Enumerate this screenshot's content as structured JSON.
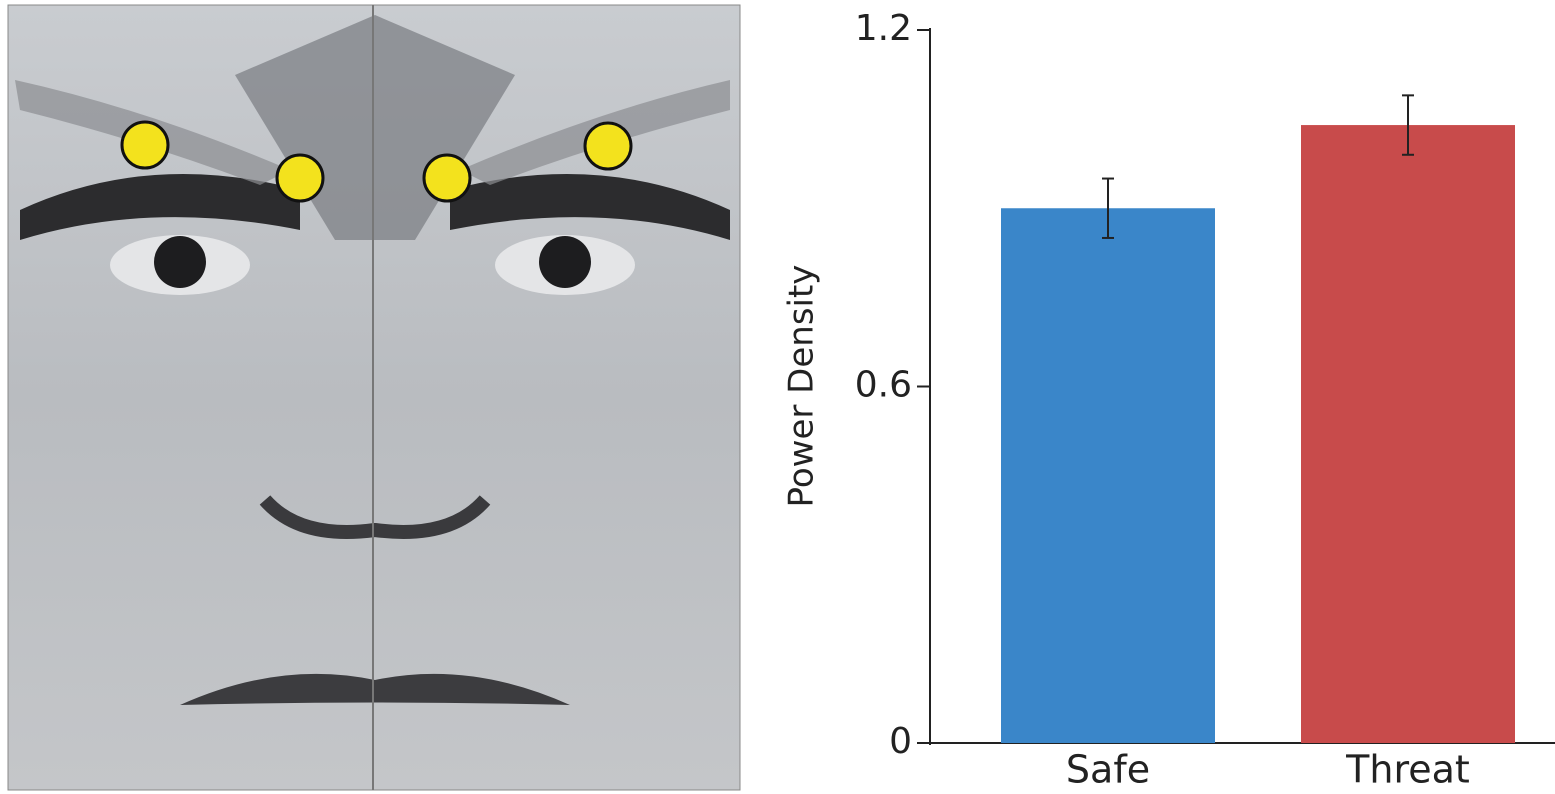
{
  "chart_data": {
    "type": "bar",
    "y_label": "Power Density",
    "categories": [
      "Safe",
      "Threat"
    ],
    "values": [
      0.9,
      1.04
    ],
    "errors": [
      0.05,
      0.05
    ],
    "colors": [
      "#3a86c9",
      "#c84b4b"
    ],
    "ylim": [
      0,
      1.2
    ],
    "yticks": [
      0,
      0.6,
      1.2
    ],
    "grid": false
  }
}
